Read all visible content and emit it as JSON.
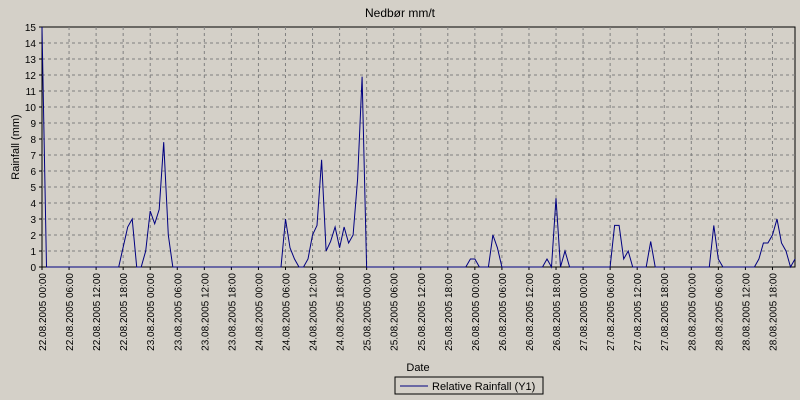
{
  "chart_data": {
    "type": "line",
    "title": "Nedbør mm/t",
    "xlabel": "Date",
    "ylabel": "Rainfall (mm)",
    "ylim": [
      0,
      15
    ],
    "yticks": [
      "0",
      "1",
      "2",
      "3",
      "4",
      "5",
      "6",
      "7",
      "8",
      "9",
      "10",
      "11",
      "12",
      "13",
      "14",
      "15"
    ],
    "grid": true,
    "legend_position": "bottom-center",
    "line_color": "#000080",
    "xticks": [
      "22.08.2005 00:00",
      "22.08.2005 06:00",
      "22.08.2005 12:00",
      "22.08.2005 18:00",
      "23.08.2005 00:00",
      "23.08.2005 06:00",
      "23.08.2005 12:00",
      "23.08.2005 18:00",
      "24.08.2005 00:00",
      "24.08.2005 06:00",
      "24.08.2005 12:00",
      "24.08.2005 18:00",
      "25.08.2005 00:00",
      "25.08.2005 06:00",
      "25.08.2005 12:00",
      "25.08.2005 18:00",
      "26.08.2005 00:00",
      "26.08.2005 06:00",
      "26.08.2005 12:00",
      "26.08.2005 18:00",
      "27.08.2005 00:00",
      "27.08.2005 06:00",
      "27.08.2005 12:00",
      "27.08.2005 18:00",
      "28.08.2005 00:00",
      "28.08.2005 06:00",
      "28.08.2005 12:00",
      "28.08.2005 18:00"
    ],
    "series": [
      {
        "name": "Relative Rainfall (Y1)",
        "x": [
          "22.08.2005 00:00",
          "22.08.2005 01:00",
          "22.08.2005 02:00",
          "22.08.2005 17:00",
          "22.08.2005 19:00",
          "22.08.2005 20:00",
          "22.08.2005 21:00",
          "22.08.2005 22:00",
          "22.08.2005 23:00",
          "23.08.2005 00:00",
          "23.08.2005 01:00",
          "23.08.2005 02:00",
          "23.08.2005 03:00",
          "23.08.2005 04:00",
          "23.08.2005 05:00",
          "23.08.2005 06:00",
          "24.08.2005 05:00",
          "24.08.2005 06:00",
          "24.08.2005 07:00",
          "24.08.2005 08:00",
          "24.08.2005 09:00",
          "24.08.2005 10:00",
          "24.08.2005 11:00",
          "24.08.2005 12:00",
          "24.08.2005 13:00",
          "24.08.2005 14:00",
          "24.08.2005 15:00",
          "24.08.2005 16:00",
          "24.08.2005 17:00",
          "24.08.2005 18:00",
          "24.08.2005 19:00",
          "24.08.2005 20:00",
          "24.08.2005 21:00",
          "24.08.2005 22:00",
          "24.08.2005 23:00",
          "25.08.2005 00:00",
          "25.08.2005 22:00",
          "25.08.2005 23:00",
          "26.08.2005 00:00",
          "26.08.2005 01:00",
          "26.08.2005 02:00",
          "26.08.2005 03:00",
          "26.08.2005 04:00",
          "26.08.2005 05:00",
          "26.08.2005 06:00",
          "26.08.2005 07:00",
          "26.08.2005 15:00",
          "26.08.2005 16:00",
          "26.08.2005 17:00",
          "26.08.2005 18:00",
          "26.08.2005 19:00",
          "26.08.2005 20:00",
          "26.08.2005 21:00",
          "27.08.2005 06:00",
          "27.08.2005 07:00",
          "27.08.2005 08:00",
          "27.08.2005 09:00",
          "27.08.2005 10:00",
          "27.08.2005 11:00",
          "27.08.2005 14:00",
          "27.08.2005 15:00",
          "27.08.2005 16:00",
          "28.08.2005 04:00",
          "28.08.2005 05:00",
          "28.08.2005 06:00",
          "28.08.2005 07:00",
          "28.08.2005 14:00",
          "28.08.2005 15:00",
          "28.08.2005 16:00",
          "28.08.2005 17:00",
          "28.08.2005 18:00",
          "28.08.2005 19:00",
          "28.08.2005 20:00",
          "28.08.2005 21:00",
          "28.08.2005 22:00",
          "28.08.2005 23:00"
        ],
        "values": [
          15,
          0,
          0,
          0,
          2.5,
          3.0,
          0,
          0,
          1.0,
          3.5,
          2.7,
          3.6,
          7.8,
          2.0,
          0,
          0,
          0,
          3.0,
          1.2,
          0.5,
          0,
          0,
          0.5,
          2.0,
          2.6,
          6.7,
          1.0,
          1.6,
          2.5,
          1.2,
          2.5,
          1.5,
          2.0,
          5.5,
          11.9,
          0,
          0,
          0.5,
          0.5,
          0,
          0,
          0,
          2.0,
          1.2,
          0,
          0,
          0,
          0.5,
          0,
          4.3,
          0,
          1.0,
          0,
          0,
          2.6,
          2.6,
          0.5,
          1.0,
          0,
          0,
          1.6,
          0,
          0,
          2.6,
          0.5,
          0,
          0,
          0.5,
          1.5,
          1.5,
          2.0,
          3.0,
          1.5,
          1.0,
          0,
          0.5
        ]
      }
    ]
  }
}
